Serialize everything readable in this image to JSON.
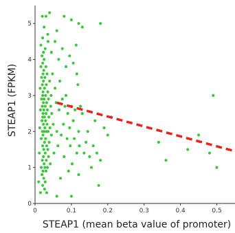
{
  "chart_data": {
    "type": "scatter",
    "title": "",
    "xlabel": "STEAP1 (mean beta value of promoter)",
    "ylabel": "STEAP1 (FPKM)",
    "xlim": [
      0,
      0.55
    ],
    "ylim": [
      0,
      5.5
    ],
    "xticks": [
      "0",
      "0.1",
      "0.2",
      "0.3",
      "0.4",
      "0.5"
    ],
    "yticks": [
      "0",
      "1",
      "2",
      "3",
      "4",
      "5"
    ],
    "xtick_values": [
      0,
      0.1,
      0.2,
      0.3,
      0.4,
      0.5
    ],
    "ytick_values": [
      0,
      1,
      2,
      3,
      4,
      5
    ],
    "grid": false,
    "colors": {
      "points": "#3ec63a",
      "trend": "#e8231d",
      "axis": "#333333"
    },
    "series": [
      {
        "kind": "points",
        "points": [
          [
            0.01,
            0.6
          ],
          [
            0.012,
            1.4
          ],
          [
            0.013,
            2.1
          ],
          [
            0.014,
            3.2
          ],
          [
            0.015,
            0.3
          ],
          [
            0.015,
            2.6
          ],
          [
            0.016,
            3.8
          ],
          [
            0.016,
            4.4
          ],
          [
            0.017,
            1.0
          ],
          [
            0.017,
            1.8
          ],
          [
            0.018,
            2.9
          ],
          [
            0.018,
            3.5
          ],
          [
            0.019,
            0.8
          ],
          [
            0.019,
            2.3
          ],
          [
            0.019,
            4.1
          ],
          [
            0.02,
            1.2
          ],
          [
            0.02,
            2.0
          ],
          [
            0.02,
            2.7
          ],
          [
            0.02,
            3.3
          ],
          [
            0.021,
            0.5
          ],
          [
            0.021,
            1.6
          ],
          [
            0.021,
            2.4
          ],
          [
            0.021,
            3.0
          ],
          [
            0.021,
            3.9
          ],
          [
            0.021,
            4.6
          ],
          [
            0.022,
            0.9
          ],
          [
            0.022,
            1.9
          ],
          [
            0.022,
            2.5
          ],
          [
            0.022,
            3.1
          ],
          [
            0.022,
            3.6
          ],
          [
            0.023,
            1.3
          ],
          [
            0.023,
            2.2
          ],
          [
            0.023,
            2.8
          ],
          [
            0.023,
            3.4
          ],
          [
            0.023,
            4.2
          ],
          [
            0.024,
            0.7
          ],
          [
            0.024,
            1.5
          ],
          [
            0.024,
            2.6
          ],
          [
            0.024,
            3.7
          ],
          [
            0.025,
            1.1
          ],
          [
            0.025,
            2.0
          ],
          [
            0.025,
            2.9
          ],
          [
            0.025,
            4.0
          ],
          [
            0.026,
            0.4
          ],
          [
            0.026,
            1.7
          ],
          [
            0.026,
            2.4
          ],
          [
            0.026,
            3.2
          ],
          [
            0.027,
            1.0
          ],
          [
            0.027,
            2.1
          ],
          [
            0.027,
            3.5
          ],
          [
            0.028,
            0.6
          ],
          [
            0.028,
            1.4
          ],
          [
            0.028,
            2.7
          ],
          [
            0.028,
            4.3
          ],
          [
            0.029,
            1.8
          ],
          [
            0.029,
            2.3
          ],
          [
            0.029,
            3.0
          ],
          [
            0.03,
            0.9
          ],
          [
            0.03,
            2.5
          ],
          [
            0.03,
            3.8
          ],
          [
            0.031,
            1.2
          ],
          [
            0.031,
            2.0
          ],
          [
            0.031,
            3.3
          ],
          [
            0.032,
            0.3
          ],
          [
            0.032,
            1.6
          ],
          [
            0.032,
            2.8
          ],
          [
            0.033,
            2.2
          ],
          [
            0.033,
            3.6
          ],
          [
            0.034,
            1.0
          ],
          [
            0.034,
            2.6
          ],
          [
            0.035,
            1.5
          ],
          [
            0.035,
            3.1
          ],
          [
            0.036,
            2.0
          ],
          [
            0.036,
            4.5
          ],
          [
            0.037,
            1.3
          ],
          [
            0.037,
            2.9
          ],
          [
            0.038,
            2.4
          ],
          [
            0.039,
            1.7
          ],
          [
            0.04,
            3.4
          ],
          [
            0.041,
            2.1
          ],
          [
            0.042,
            1.1
          ],
          [
            0.043,
            2.7
          ],
          [
            0.044,
            3.0
          ],
          [
            0.045,
            1.9
          ],
          [
            0.046,
            2.5
          ],
          [
            0.048,
            3.6
          ],
          [
            0.05,
            2.2
          ],
          [
            0.052,
            1.4
          ],
          [
            0.055,
            3.2
          ],
          [
            0.058,
            2.8
          ],
          [
            0.06,
            2.0
          ],
          [
            0.063,
            1.6
          ],
          [
            0.066,
            2.6
          ],
          [
            0.068,
            3.4
          ],
          [
            0.07,
            0.7
          ],
          [
            0.072,
            1.9
          ],
          [
            0.075,
            2.9
          ],
          [
            0.078,
            2.2
          ],
          [
            0.08,
            1.3
          ],
          [
            0.082,
            2.7
          ],
          [
            0.085,
            3.0
          ],
          [
            0.088,
            1.8
          ],
          [
            0.09,
            2.5
          ],
          [
            0.092,
            0.9
          ],
          [
            0.095,
            2.1
          ],
          [
            0.097,
            1.6
          ],
          [
            0.1,
            2.7
          ],
          [
            0.102,
            1.1
          ],
          [
            0.105,
            2.3
          ],
          [
            0.108,
            1.8
          ],
          [
            0.11,
            2.6
          ],
          [
            0.113,
            4.4
          ],
          [
            0.115,
            1.4
          ],
          [
            0.118,
            3.3
          ],
          [
            0.12,
            2.0
          ],
          [
            0.122,
            1.6
          ],
          [
            0.125,
            2.7
          ],
          [
            0.13,
            2.5
          ],
          [
            0.135,
            1.4
          ],
          [
            0.14,
            1.7
          ],
          [
            0.145,
            2.0
          ],
          [
            0.15,
            1.3
          ],
          [
            0.155,
            1.0
          ],
          [
            0.16,
            1.6
          ],
          [
            0.165,
            2.3
          ],
          [
            0.17,
            1.4
          ],
          [
            0.175,
            0.5
          ],
          [
            0.18,
            1.2
          ],
          [
            0.19,
            2.1
          ],
          [
            0.2,
            1.9
          ],
          [
            0.21,
            2.4
          ],
          [
            0.13,
            4.9
          ],
          [
            0.18,
            5.0
          ],
          [
            0.1,
            5.1
          ],
          [
            0.08,
            5.2
          ],
          [
            0.12,
            5.0
          ],
          [
            0.06,
            4.8
          ],
          [
            0.04,
            5.3
          ],
          [
            0.03,
            5.2
          ],
          [
            0.02,
            5.2
          ],
          [
            0.025,
            4.9
          ],
          [
            0.035,
            4.7
          ],
          [
            0.045,
            4.2
          ],
          [
            0.055,
            4.5
          ],
          [
            0.065,
            4.0
          ],
          [
            0.075,
            4.3
          ],
          [
            0.085,
            3.8
          ],
          [
            0.095,
            4.1
          ],
          [
            0.105,
            3.9
          ],
          [
            0.115,
            3.6
          ],
          [
            0.06,
            0.2
          ],
          [
            0.1,
            0.2
          ],
          [
            0.12,
            0.8
          ],
          [
            0.34,
            1.7
          ],
          [
            0.36,
            1.2
          ],
          [
            0.42,
            1.5
          ],
          [
            0.45,
            1.9
          ],
          [
            0.48,
            1.4
          ],
          [
            0.49,
            3.0
          ],
          [
            0.5,
            1.0
          ]
        ]
      },
      {
        "kind": "trend",
        "style": "dashed",
        "line": [
          [
            0.06,
            2.8
          ],
          [
            0.55,
            1.45
          ]
        ]
      }
    ]
  }
}
